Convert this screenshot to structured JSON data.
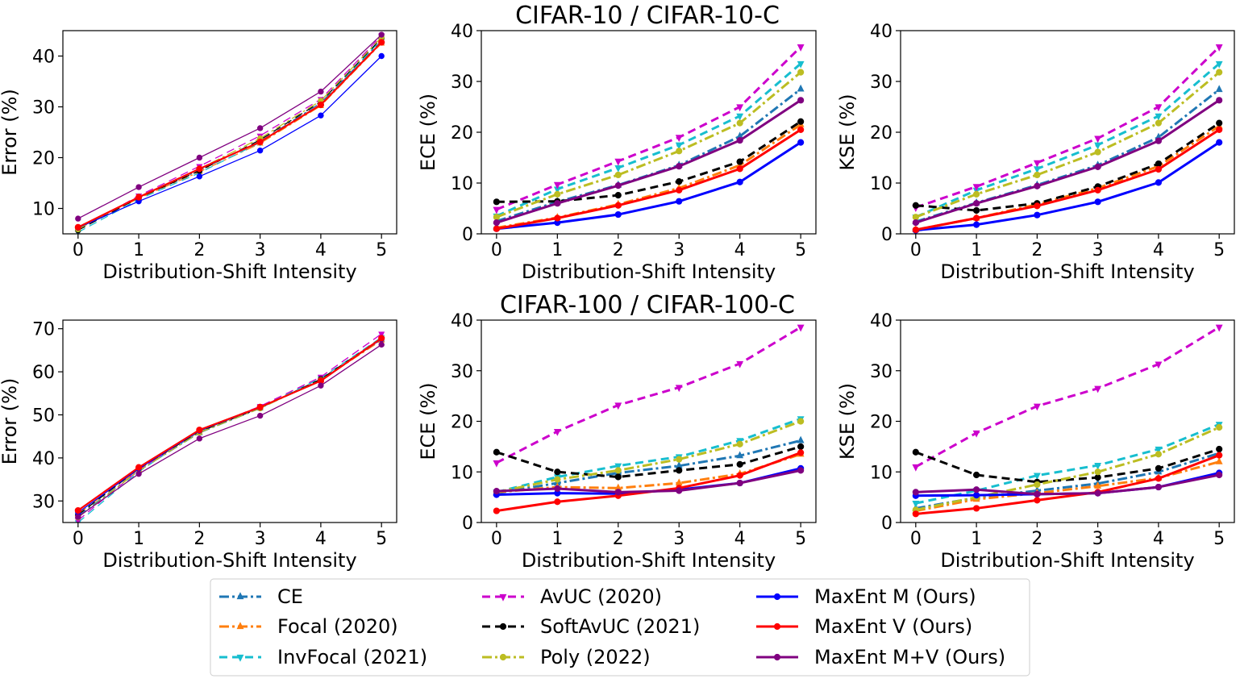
{
  "row_titles": [
    "CIFAR-10 / CIFAR-10-C",
    "CIFAR-100 / CIFAR-100-C"
  ],
  "methods": [
    {
      "key": "ce",
      "name": "CE",
      "color": "#1f77b4",
      "dash": "12,4,3,4",
      "marker": "triangle-up",
      "width": 3
    },
    {
      "key": "focal",
      "name": "Focal (2020)",
      "color": "#ff7f0e",
      "dash": "12,4,3,4",
      "marker": "triangle-up",
      "width": 3
    },
    {
      "key": "invfocal",
      "name": "InvFocal (2021)",
      "color": "#17becf",
      "dash": "10,6",
      "marker": "triangle-down",
      "width": 3
    },
    {
      "key": "avuc",
      "name": "AvUC (2020)",
      "color": "#cc00cc",
      "dash": "10,6",
      "marker": "triangle-down",
      "width": 3
    },
    {
      "key": "softavuc",
      "name": "SoftAvUC (2021)",
      "color": "#000000",
      "dash": "10,6",
      "marker": "circle",
      "width": 3
    },
    {
      "key": "poly",
      "name": "Poly (2022)",
      "color": "#bcbd22",
      "dash": "12,4,3,4",
      "marker": "circle",
      "width": 3
    },
    {
      "key": "maxm",
      "name": "MaxEnt M (Ours)",
      "color": "#0000ff",
      "dash": "",
      "marker": "circle",
      "width": 3
    },
    {
      "key": "maxv",
      "name": "MaxEnt V (Ours)",
      "color": "#ff0000",
      "dash": "",
      "marker": "circle",
      "width": 3
    },
    {
      "key": "maxmv",
      "name": "MaxEnt M+V (Ours)",
      "color": "#800080",
      "dash": "",
      "marker": "circle",
      "width": 3
    }
  ],
  "legend_layout": "bottom-center, 3 columns",
  "chart_data": [
    {
      "type": "line",
      "row": 0,
      "col": 0,
      "title": "",
      "xlabel": "Distribution-Shift Intensity",
      "ylabel": "Error (%)",
      "x": [
        0,
        1,
        2,
        3,
        4,
        5
      ],
      "ylim": [
        5,
        45
      ],
      "yticks": [
        10,
        20,
        30,
        40
      ],
      "grid": false,
      "series": [
        {
          "name": "CE",
          "values": [
            6.0,
            12.2,
            17.5,
            23.2,
            30.8,
            43.0
          ],
          "width": 1.3
        },
        {
          "name": "Focal (2020)",
          "values": [
            6.0,
            12.0,
            17.2,
            22.8,
            30.2,
            42.5
          ],
          "width": 1.3
        },
        {
          "name": "InvFocal (2021)",
          "values": [
            5.3,
            11.8,
            17.0,
            23.0,
            30.5,
            43.3
          ],
          "width": 1.3
        },
        {
          "name": "AvUC (2020)",
          "values": [
            5.8,
            12.5,
            18.3,
            24.3,
            31.5,
            44.0
          ],
          "width": 1.3
        },
        {
          "name": "SoftAvUC (2021)",
          "values": [
            5.7,
            12.1,
            17.4,
            23.5,
            31.0,
            43.5
          ],
          "width": 1.3
        },
        {
          "name": "Poly (2022)",
          "values": [
            5.9,
            12.3,
            17.8,
            23.8,
            31.2,
            43.7
          ],
          "width": 1.3
        },
        {
          "name": "MaxEnt M (Ours)",
          "values": [
            6.2,
            11.4,
            16.3,
            21.4,
            28.3,
            40.0
          ],
          "width": 1.3
        },
        {
          "name": "MaxEnt V (Ours)",
          "values": [
            6.3,
            12.2,
            17.8,
            23.1,
            30.4,
            42.7
          ],
          "width": 2.2
        },
        {
          "name": "MaxEnt M+V (Ours)",
          "values": [
            8.0,
            14.2,
            20.0,
            25.8,
            33.0,
            44.2
          ],
          "width": 1.3
        }
      ]
    },
    {
      "type": "line",
      "row": 0,
      "col": 1,
      "title": "",
      "xlabel": "Distribution-Shift Intensity",
      "ylabel": "ECE (%)",
      "x": [
        0,
        1,
        2,
        3,
        4,
        5
      ],
      "ylim": [
        0,
        40
      ],
      "yticks": [
        0,
        10,
        20,
        30,
        40
      ],
      "grid": false,
      "series": [
        {
          "name": "CE",
          "values": [
            2.5,
            6.3,
            9.6,
            13.5,
            19.2,
            28.5
          ]
        },
        {
          "name": "Focal (2020)",
          "values": [
            1.2,
            3.2,
            5.8,
            9.0,
            13.5,
            21.5
          ]
        },
        {
          "name": "InvFocal (2021)",
          "values": [
            3.5,
            8.8,
            13.0,
            17.5,
            23.2,
            33.5
          ]
        },
        {
          "name": "AvUC (2020)",
          "values": [
            4.8,
            9.7,
            14.3,
            19.0,
            25.0,
            36.8
          ]
        },
        {
          "name": "SoftAvUC (2021)",
          "values": [
            6.3,
            6.4,
            7.6,
            10.3,
            14.2,
            22.1
          ]
        },
        {
          "name": "Poly (2022)",
          "values": [
            3.3,
            7.8,
            11.6,
            16.3,
            21.8,
            31.8
          ]
        },
        {
          "name": "MaxEnt M (Ours)",
          "values": [
            1.0,
            2.2,
            3.8,
            6.4,
            10.2,
            18.0
          ]
        },
        {
          "name": "MaxEnt V (Ours)",
          "values": [
            1.0,
            3.1,
            5.6,
            8.6,
            12.8,
            20.5
          ]
        },
        {
          "name": "MaxEnt M+V (Ours)",
          "values": [
            2.2,
            6.0,
            9.5,
            13.3,
            18.4,
            26.3
          ]
        }
      ]
    },
    {
      "type": "line",
      "row": 0,
      "col": 2,
      "title": "",
      "xlabel": "Distribution-Shift Intensity",
      "ylabel": "KSE (%)",
      "x": [
        0,
        1,
        2,
        3,
        4,
        5
      ],
      "ylim": [
        0,
        40
      ],
      "yticks": [
        0,
        10,
        20,
        30,
        40
      ],
      "grid": false,
      "series": [
        {
          "name": "CE",
          "values": [
            2.4,
            6.1,
            9.6,
            13.5,
            19.0,
            28.4
          ]
        },
        {
          "name": "Focal (2020)",
          "values": [
            0.8,
            3.1,
            5.8,
            9.0,
            13.3,
            21.2
          ]
        },
        {
          "name": "InvFocal (2021)",
          "values": [
            3.3,
            8.6,
            12.8,
            17.5,
            23.2,
            33.5
          ]
        },
        {
          "name": "AvUC (2020)",
          "values": [
            5.2,
            9.3,
            14.0,
            18.8,
            25.0,
            36.8
          ]
        },
        {
          "name": "SoftAvUC (2021)",
          "values": [
            5.6,
            4.6,
            6.0,
            9.3,
            13.8,
            21.8
          ]
        },
        {
          "name": "Poly (2022)",
          "values": [
            3.3,
            7.8,
            11.6,
            16.1,
            21.8,
            31.8
          ]
        },
        {
          "name": "MaxEnt M (Ours)",
          "values": [
            0.7,
            1.8,
            3.7,
            6.3,
            10.1,
            18.0
          ]
        },
        {
          "name": "MaxEnt V (Ours)",
          "values": [
            0.8,
            3.1,
            5.5,
            8.6,
            12.7,
            20.5
          ]
        },
        {
          "name": "MaxEnt M+V (Ours)",
          "values": [
            2.2,
            6.0,
            9.4,
            13.2,
            18.3,
            26.3
          ]
        }
      ]
    },
    {
      "type": "line",
      "row": 1,
      "col": 0,
      "title": "",
      "xlabel": "Distribution-Shift Intensity",
      "ylabel": "Error (%)",
      "x": [
        0,
        1,
        2,
        3,
        4,
        5
      ],
      "ylim": [
        25,
        72
      ],
      "yticks": [
        30,
        40,
        50,
        60,
        70
      ],
      "grid": false,
      "series": [
        {
          "name": "CE",
          "values": [
            26.5,
            37.0,
            45.8,
            51.5,
            58.2,
            67.5
          ],
          "width": 1.3
        },
        {
          "name": "Focal (2020)",
          "values": [
            27.0,
            37.3,
            46.0,
            51.7,
            58.0,
            67.3
          ],
          "width": 1.3
        },
        {
          "name": "InvFocal (2021)",
          "values": [
            25.0,
            36.8,
            46.2,
            51.8,
            58.5,
            68.0
          ],
          "width": 1.3
        },
        {
          "name": "AvUC (2020)",
          "values": [
            25.5,
            37.2,
            46.3,
            52.0,
            58.8,
            68.8
          ],
          "width": 1.3
        },
        {
          "name": "SoftAvUC (2021)",
          "values": [
            26.8,
            37.5,
            46.1,
            51.6,
            58.3,
            67.8
          ],
          "width": 1.3
        },
        {
          "name": "Poly (2022)",
          "values": [
            26.2,
            37.0,
            45.9,
            51.5,
            58.1,
            67.6
          ],
          "width": 1.3
        },
        {
          "name": "MaxEnt M (Ours)",
          "values": [
            27.3,
            37.5,
            46.3,
            51.7,
            58.0,
            67.6
          ],
          "width": 1.3
        },
        {
          "name": "MaxEnt V (Ours)",
          "values": [
            27.8,
            37.8,
            46.5,
            51.8,
            57.9,
            67.8
          ],
          "width": 2.2
        },
        {
          "name": "MaxEnt M+V (Ours)",
          "values": [
            26.3,
            36.3,
            44.5,
            49.8,
            56.8,
            66.3
          ],
          "width": 1.3
        }
      ]
    },
    {
      "type": "line",
      "row": 1,
      "col": 1,
      "title": "",
      "xlabel": "Distribution-Shift Intensity",
      "ylabel": "ECE (%)",
      "x": [
        0,
        1,
        2,
        3,
        4,
        5
      ],
      "ylim": [
        0,
        40
      ],
      "yticks": [
        0,
        10,
        20,
        30,
        40
      ],
      "grid": false,
      "series": [
        {
          "name": "CE",
          "values": [
            5.8,
            7.8,
            9.8,
            11.2,
            13.2,
            16.2
          ]
        },
        {
          "name": "Focal (2020)",
          "values": [
            6.0,
            7.0,
            6.8,
            7.8,
            9.6,
            13.5
          ]
        },
        {
          "name": "InvFocal (2021)",
          "values": [
            6.0,
            9.0,
            11.2,
            13.0,
            16.2,
            20.5
          ]
        },
        {
          "name": "AvUC (2020)",
          "values": [
            11.8,
            18.0,
            23.2,
            26.7,
            31.4,
            38.6
          ]
        },
        {
          "name": "SoftAvUC (2021)",
          "values": [
            13.9,
            10.0,
            9.0,
            10.3,
            11.5,
            15.0
          ]
        },
        {
          "name": "Poly (2022)",
          "values": [
            6.0,
            8.5,
            10.3,
            12.5,
            15.5,
            20.0
          ]
        },
        {
          "name": "MaxEnt M (Ours)",
          "values": [
            5.5,
            5.8,
            5.7,
            6.5,
            7.8,
            10.7
          ]
        },
        {
          "name": "MaxEnt V (Ours)",
          "values": [
            2.3,
            4.1,
            5.3,
            6.8,
            9.3,
            13.8
          ]
        },
        {
          "name": "MaxEnt M+V (Ours)",
          "values": [
            6.2,
            6.7,
            6.0,
            6.3,
            7.8,
            10.3
          ]
        }
      ]
    },
    {
      "type": "line",
      "row": 1,
      "col": 2,
      "title": "",
      "xlabel": "Distribution-Shift Intensity",
      "ylabel": "KSE (%)",
      "x": [
        0,
        1,
        2,
        3,
        4,
        5
      ],
      "ylim": [
        0,
        40
      ],
      "yticks": [
        0,
        10,
        20,
        30,
        40
      ],
      "grid": false,
      "series": [
        {
          "name": "CE",
          "values": [
            2.8,
            4.9,
            6.3,
            7.7,
            10.0,
            13.7
          ]
        },
        {
          "name": "Focal (2020)",
          "values": [
            2.3,
            4.6,
            5.8,
            7.2,
            8.8,
            12.0
          ]
        },
        {
          "name": "InvFocal (2021)",
          "values": [
            3.8,
            6.3,
            9.3,
            11.3,
            14.5,
            19.4
          ]
        },
        {
          "name": "AvUC (2020)",
          "values": [
            11.0,
            17.7,
            23.0,
            26.5,
            31.3,
            38.6
          ]
        },
        {
          "name": "SoftAvUC (2021)",
          "values": [
            13.9,
            9.4,
            8.0,
            8.9,
            10.7,
            14.5
          ]
        },
        {
          "name": "Poly (2022)",
          "values": [
            2.5,
            5.0,
            7.5,
            10.0,
            13.5,
            18.8
          ]
        },
        {
          "name": "MaxEnt M (Ours)",
          "values": [
            5.3,
            5.4,
            5.6,
            5.8,
            7.0,
            9.8
          ]
        },
        {
          "name": "MaxEnt V (Ours)",
          "values": [
            1.7,
            2.8,
            4.4,
            6.0,
            8.7,
            13.3
          ]
        },
        {
          "name": "MaxEnt M+V (Ours)",
          "values": [
            6.0,
            6.5,
            5.6,
            5.8,
            7.0,
            9.4
          ]
        }
      ]
    }
  ]
}
